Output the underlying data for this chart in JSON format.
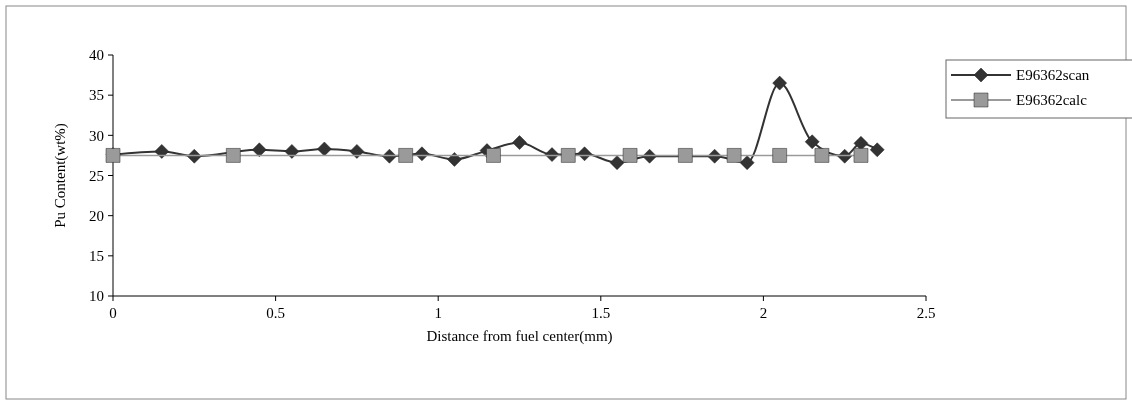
{
  "chart_data": {
    "type": "line",
    "xlabel": "Distance from fuel center(mm)",
    "ylabel": "Pu Content(wt%)",
    "xlim": [
      0,
      2.5
    ],
    "xticks": [
      0,
      0.5,
      1,
      1.5,
      2,
      2.5
    ],
    "ylim": [
      10,
      40
    ],
    "yticks": [
      10,
      15,
      20,
      25,
      30,
      35,
      40
    ],
    "grid": false,
    "legend": "right",
    "series": [
      {
        "name": "E96362scan",
        "color": "#333333",
        "marker": "diamond",
        "x": [
          0,
          0.15,
          0.25,
          0.45,
          0.55,
          0.65,
          0.75,
          0.85,
          0.95,
          1.05,
          1.15,
          1.25,
          1.35,
          1.45,
          1.55,
          1.65,
          1.85,
          1.95,
          2.05,
          2.15,
          2.25,
          2.3,
          2.35
        ],
        "values": [
          27.6,
          28.0,
          27.4,
          28.2,
          28.0,
          28.3,
          28.0,
          27.4,
          27.7,
          27.0,
          28.1,
          29.1,
          27.6,
          27.7,
          26.6,
          27.4,
          27.4,
          26.6,
          36.5,
          29.2,
          27.4,
          29.0,
          28.2
        ]
      },
      {
        "name": "E96362calc",
        "color": "#9a9a9a",
        "marker": "square",
        "x": [
          0,
          0.37,
          0.9,
          1.17,
          1.4,
          1.59,
          1.76,
          1.91,
          2.05,
          2.18,
          2.3
        ],
        "values": [
          27.5,
          27.5,
          27.5,
          27.5,
          27.5,
          27.5,
          27.5,
          27.5,
          27.5,
          27.5,
          27.5
        ]
      }
    ]
  }
}
